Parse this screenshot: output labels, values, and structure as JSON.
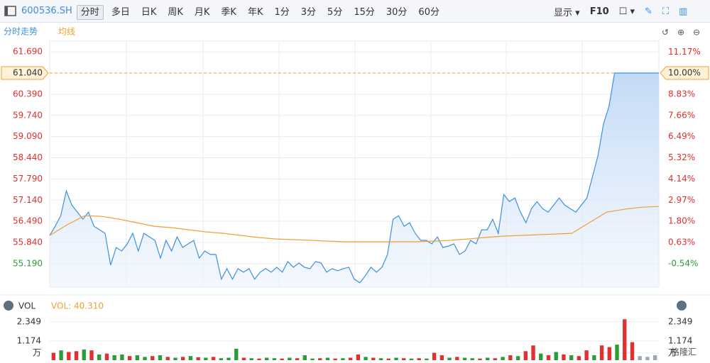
{
  "toolbar": {
    "symbol": "600536.SH",
    "tabs": [
      "分时",
      "多日",
      "日K",
      "周K",
      "月K",
      "季K",
      "年K",
      "1分",
      "3分",
      "5分",
      "15分",
      "30分",
      "60分"
    ],
    "display": "显示",
    "f10": "F10"
  },
  "watermark": "格隆汇",
  "chart_data": [
    {
      "type": "line",
      "series": [
        {
          "name": "分时走势",
          "color": "#3d8fe0",
          "values": [
            56.057,
            56.338,
            56.663,
            57.422,
            56.988,
            56.772,
            56.555,
            56.772,
            56.338,
            56.23,
            56.122,
            55.147,
            55.688,
            55.58,
            55.797,
            56.122,
            55.58,
            56.122,
            56.013,
            55.905,
            55.363,
            55.905,
            55.58,
            56.013,
            55.688,
            55.797,
            55.905,
            55.363,
            55.58,
            55.472,
            55.472,
            54.713,
            55.038,
            54.713,
            55.038,
            54.93,
            55.038,
            54.713,
            54.93,
            55.038,
            54.93,
            55.082,
            54.93,
            55.255,
            55.082,
            55.212,
            55.082,
            55.038,
            55.255,
            55.212,
            54.93,
            55.038,
            54.973,
            55.038,
            55.082,
            54.713,
            54.604,
            54.823,
            55.082,
            54.93,
            55.082,
            55.472,
            56.555,
            56.663,
            56.338,
            56.447,
            56.122,
            55.905,
            55.905,
            55.797,
            56.013,
            55.688,
            55.732,
            55.797,
            55.472,
            55.58,
            55.905,
            55.797,
            56.23,
            56.23,
            56.555,
            56.122,
            57.313,
            57.097,
            57.205,
            56.772,
            56.447,
            56.88,
            57.097,
            56.88,
            56.772,
            56.988,
            57.205,
            56.988,
            56.88,
            56.772,
            56.988,
            57.205,
            57.855,
            58.505,
            59.48,
            60.022,
            61.04,
            61.04,
            61.04,
            61.04,
            61.04,
            61.04,
            61.04,
            61.04,
            61.04
          ]
        },
        {
          "name": "均线",
          "color": "#f0a030",
          "values": [
            56.057,
            56.382,
            56.663,
            56.642,
            56.555,
            56.447,
            56.338,
            56.295,
            56.23,
            56.165,
            56.122,
            56.057,
            55.992,
            55.948,
            55.927,
            55.905,
            55.883,
            55.862,
            55.862,
            55.862,
            55.862,
            55.862,
            55.883,
            55.905,
            55.948,
            55.992,
            56.035,
            56.057,
            56.078,
            56.1,
            56.122,
            56.447,
            56.772,
            56.858,
            56.923,
            56.945
          ]
        }
      ],
      "ylim": [
        54.47,
        62.02
      ],
      "yticks": [
        {
          "value": 61.69,
          "label": "61.690"
        },
        {
          "value": 61.04,
          "label": "61.040"
        },
        {
          "value": 60.39,
          "label": "60.390"
        },
        {
          "value": 59.74,
          "label": "59.740"
        },
        {
          "value": 59.09,
          "label": "59.090"
        },
        {
          "value": 58.44,
          "label": "58.440"
        },
        {
          "value": 57.79,
          "label": "57.790"
        },
        {
          "value": 57.14,
          "label": "57.140"
        },
        {
          "value": 56.49,
          "label": "56.490"
        },
        {
          "value": 55.84,
          "label": "55.840"
        },
        {
          "value": 55.19,
          "label": "55.190"
        }
      ],
      "y2lim": [
        -1.84,
        11.77
      ],
      "y2ticks": [
        {
          "value": 11.17,
          "label": "11.17%"
        },
        {
          "value": 10.0,
          "label": "10.00%"
        },
        {
          "value": 8.83,
          "label": "8.83%"
        },
        {
          "value": 7.66,
          "label": "7.66%"
        },
        {
          "value": 6.49,
          "label": "6.49%"
        },
        {
          "value": 5.32,
          "label": "5.32%"
        },
        {
          "value": 4.14,
          "label": "4.14%"
        },
        {
          "value": 2.97,
          "label": "2.97%"
        },
        {
          "value": 1.8,
          "label": "1.80%"
        },
        {
          "value": 0.63,
          "label": "0.63%"
        },
        {
          "value": -0.54,
          "label": "-0.54%"
        }
      ],
      "limit_line": 61.04,
      "grid": true
    },
    {
      "type": "bar",
      "title": "VOL",
      "annotation": "VOL: 40.310",
      "values": [
        0.45,
        0.6,
        0.5,
        0.55,
        0.65,
        0.6,
        0.35,
        0.4,
        0.3,
        0.35,
        0.25,
        0.3,
        0.2,
        0.25,
        0.3,
        0.2,
        0.15,
        0.2,
        0.25,
        0.18,
        0.15,
        0.2,
        0.12,
        0.15,
        0.7,
        0.15,
        0.12,
        0.1,
        0.15,
        0.12,
        0.1,
        0.15,
        0.12,
        0.3,
        0.1,
        0.12,
        0.15,
        0.1,
        0.12,
        0.15,
        0.35,
        0.2,
        0.15,
        0.12,
        0.1,
        0.15,
        0.12,
        0.1,
        0.12,
        0.1,
        0.45,
        0.3,
        0.15,
        0.2,
        0.15,
        0.12,
        0.1,
        0.15,
        0.12,
        0.2,
        0.3,
        0.25,
        0.55,
        0.9,
        0.4,
        0.3,
        0.5,
        0.35,
        0.3,
        0.25,
        0.6,
        0.3,
        0.9,
        0.8,
        0.95,
        2.5,
        1.1,
        0.25,
        0.2,
        0.3
      ],
      "colors": [
        "#e0312f",
        "#2a9d3a",
        "#e0312f",
        "#e0312f",
        "#2a9d3a",
        "#e0312f",
        "#2a9d3a",
        "#e0312f",
        "#2a9d3a",
        "#2a9d3a",
        "#e0312f",
        "#2a9d3a",
        "#2a9d3a",
        "#e0312f",
        "#2a9d3a",
        "#e0312f",
        "#2a9d3a",
        "#e0312f",
        "#2a9d3a",
        "#e0312f",
        "#2a9d3a",
        "#e0312f",
        "#2a9d3a",
        "#2a9d3a",
        "#2a9d3a",
        "#e0312f",
        "#2a9d3a",
        "#e0312f",
        "#2a9d3a",
        "#2a9d3a",
        "#e0312f",
        "#2a9d3a",
        "#e0312f",
        "#2a9d3a",
        "#2a9d3a",
        "#e0312f",
        "#2a9d3a",
        "#e0312f",
        "#2a9d3a",
        "#e0312f",
        "#e0312f",
        "#2a9d3a",
        "#e0312f",
        "#2a9d3a",
        "#e0312f",
        "#2a9d3a",
        "#e0312f",
        "#2a9d3a",
        "#e0312f",
        "#2a9d3a",
        "#e0312f",
        "#e0312f",
        "#2a9d3a",
        "#e0312f",
        "#2a9d3a",
        "#2a9d3a",
        "#e0312f",
        "#2a9d3a",
        "#e0312f",
        "#2a9d3a",
        "#e0312f",
        "#2a9d3a",
        "#e0312f",
        "#e0312f",
        "#2a9d3a",
        "#e0312f",
        "#2a9d3a",
        "#e0312f",
        "#2a9d3a",
        "#e0312f",
        "#e0312f",
        "#2a9d3a",
        "#e0312f",
        "#e0312f",
        "#2a9d3a",
        "#e0312f",
        "#e0312f",
        "#9aa7b8",
        "#9aa7b8",
        "#9aa7b8"
      ],
      "ylim": [
        0,
        2.6
      ],
      "yticks": [
        2.349,
        1.174,
        {
          "value": 0,
          "label": "万"
        }
      ],
      "grid": true
    }
  ]
}
